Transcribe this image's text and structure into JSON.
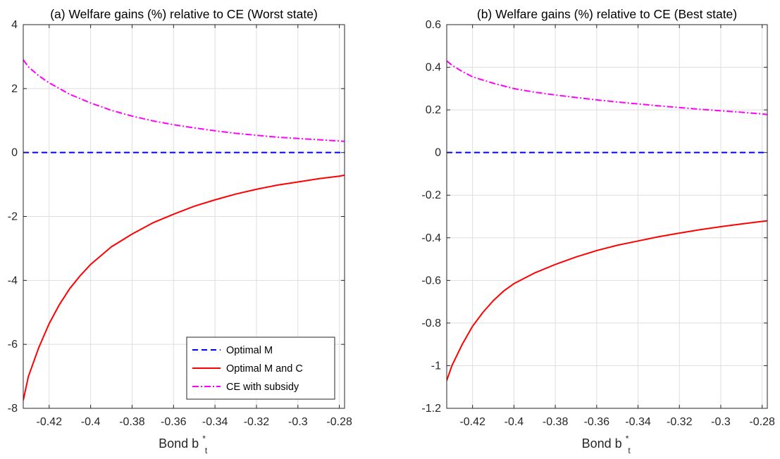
{
  "chart_data": [
    {
      "type": "line",
      "title": "(a) Welfare gains (%) relative to CE (Worst state)",
      "xlabel": "Bond b",
      "xlabel_sup": "*",
      "xlabel_sub": "t",
      "ylabel": "",
      "xlim": [
        -0.4325,
        -0.2775
      ],
      "ylim": [
        -8,
        4
      ],
      "xticks": [
        -0.42,
        -0.4,
        -0.38,
        -0.36,
        -0.34,
        -0.32,
        -0.3,
        -0.28
      ],
      "xtick_labels": [
        "-0.42",
        "-0.4",
        "-0.38",
        "-0.36",
        "-0.34",
        "-0.32",
        "-0.3",
        "-0.28"
      ],
      "yticks": [
        -8,
        -6,
        -4,
        -2,
        0,
        2,
        4
      ],
      "ytick_labels": [
        "-8",
        "-6",
        "-4",
        "-2",
        "0",
        "2",
        "4"
      ],
      "grid": true,
      "legend": "bottom-right",
      "series": [
        {
          "name": "Optimal M",
          "color": "#0000ff",
          "style": "dashed",
          "x": [
            -0.4325,
            -0.2775
          ],
          "y": [
            0,
            0
          ]
        },
        {
          "name": "Optimal M and C",
          "color": "#ff0000",
          "style": "solid",
          "x": [
            -0.4325,
            -0.43,
            -0.425,
            -0.42,
            -0.415,
            -0.41,
            -0.405,
            -0.4,
            -0.39,
            -0.38,
            -0.37,
            -0.36,
            -0.35,
            -0.34,
            -0.33,
            -0.32,
            -0.31,
            -0.3,
            -0.29,
            -0.28,
            -0.2775
          ],
          "y": [
            -7.75,
            -7.0,
            -6.1,
            -5.35,
            -4.75,
            -4.25,
            -3.85,
            -3.5,
            -2.95,
            -2.55,
            -2.2,
            -1.93,
            -1.68,
            -1.48,
            -1.3,
            -1.15,
            -1.02,
            -0.92,
            -0.82,
            -0.74,
            -0.71
          ]
        },
        {
          "name": "CE with subsidy",
          "color": "#ff00ff",
          "style": "dashdot",
          "x": [
            -0.4325,
            -0.43,
            -0.425,
            -0.42,
            -0.41,
            -0.4,
            -0.39,
            -0.38,
            -0.37,
            -0.36,
            -0.35,
            -0.34,
            -0.33,
            -0.32,
            -0.31,
            -0.3,
            -0.29,
            -0.28,
            -0.2775
          ],
          "y": [
            2.9,
            2.68,
            2.4,
            2.18,
            1.82,
            1.55,
            1.32,
            1.14,
            0.99,
            0.87,
            0.77,
            0.68,
            0.6,
            0.54,
            0.48,
            0.44,
            0.4,
            0.36,
            0.35
          ]
        }
      ]
    },
    {
      "type": "line",
      "title": "(b) Welfare gains (%) relative to CE (Best state)",
      "xlabel": "Bond b",
      "xlabel_sup": "*",
      "xlabel_sub": "t",
      "ylabel": "",
      "xlim": [
        -0.4325,
        -0.2775
      ],
      "ylim": [
        -1.2,
        0.6
      ],
      "xticks": [
        -0.42,
        -0.4,
        -0.38,
        -0.36,
        -0.34,
        -0.32,
        -0.3,
        -0.28
      ],
      "xtick_labels": [
        "-0.42",
        "-0.4",
        "-0.38",
        "-0.36",
        "-0.34",
        "-0.32",
        "-0.3",
        "-0.28"
      ],
      "yticks": [
        -1.2,
        -1.0,
        -0.8,
        -0.6,
        -0.4,
        -0.2,
        0,
        0.2,
        0.4,
        0.6
      ],
      "ytick_labels": [
        "-1.2",
        "-1",
        "-0.8",
        "-0.6",
        "-0.4",
        "-0.2",
        "0",
        "0.2",
        "0.4",
        "0.6"
      ],
      "grid": true,
      "legend": "none",
      "series": [
        {
          "color": "#0000ff",
          "style": "dashed",
          "x": [
            -0.4325,
            -0.2775
          ],
          "y": [
            0,
            0
          ]
        },
        {
          "color": "#ff0000",
          "style": "solid",
          "x": [
            -0.4325,
            -0.43,
            -0.425,
            -0.42,
            -0.415,
            -0.41,
            -0.405,
            -0.4,
            -0.39,
            -0.38,
            -0.37,
            -0.36,
            -0.35,
            -0.34,
            -0.33,
            -0.32,
            -0.31,
            -0.3,
            -0.29,
            -0.28,
            -0.2775
          ],
          "y": [
            -1.07,
            -1.0,
            -0.9,
            -0.815,
            -0.75,
            -0.695,
            -0.65,
            -0.615,
            -0.565,
            -0.525,
            -0.49,
            -0.46,
            -0.435,
            -0.415,
            -0.395,
            -0.378,
            -0.362,
            -0.348,
            -0.335,
            -0.323,
            -0.32
          ]
        },
        {
          "color": "#ff00ff",
          "style": "dashdot",
          "x": [
            -0.4325,
            -0.43,
            -0.425,
            -0.42,
            -0.41,
            -0.4,
            -0.39,
            -0.38,
            -0.37,
            -0.36,
            -0.35,
            -0.34,
            -0.33,
            -0.32,
            -0.31,
            -0.3,
            -0.29,
            -0.28,
            -0.2775
          ],
          "y": [
            0.43,
            0.41,
            0.38,
            0.355,
            0.325,
            0.3,
            0.283,
            0.27,
            0.258,
            0.247,
            0.237,
            0.228,
            0.219,
            0.211,
            0.203,
            0.196,
            0.189,
            0.181,
            0.178
          ]
        }
      ]
    }
  ]
}
